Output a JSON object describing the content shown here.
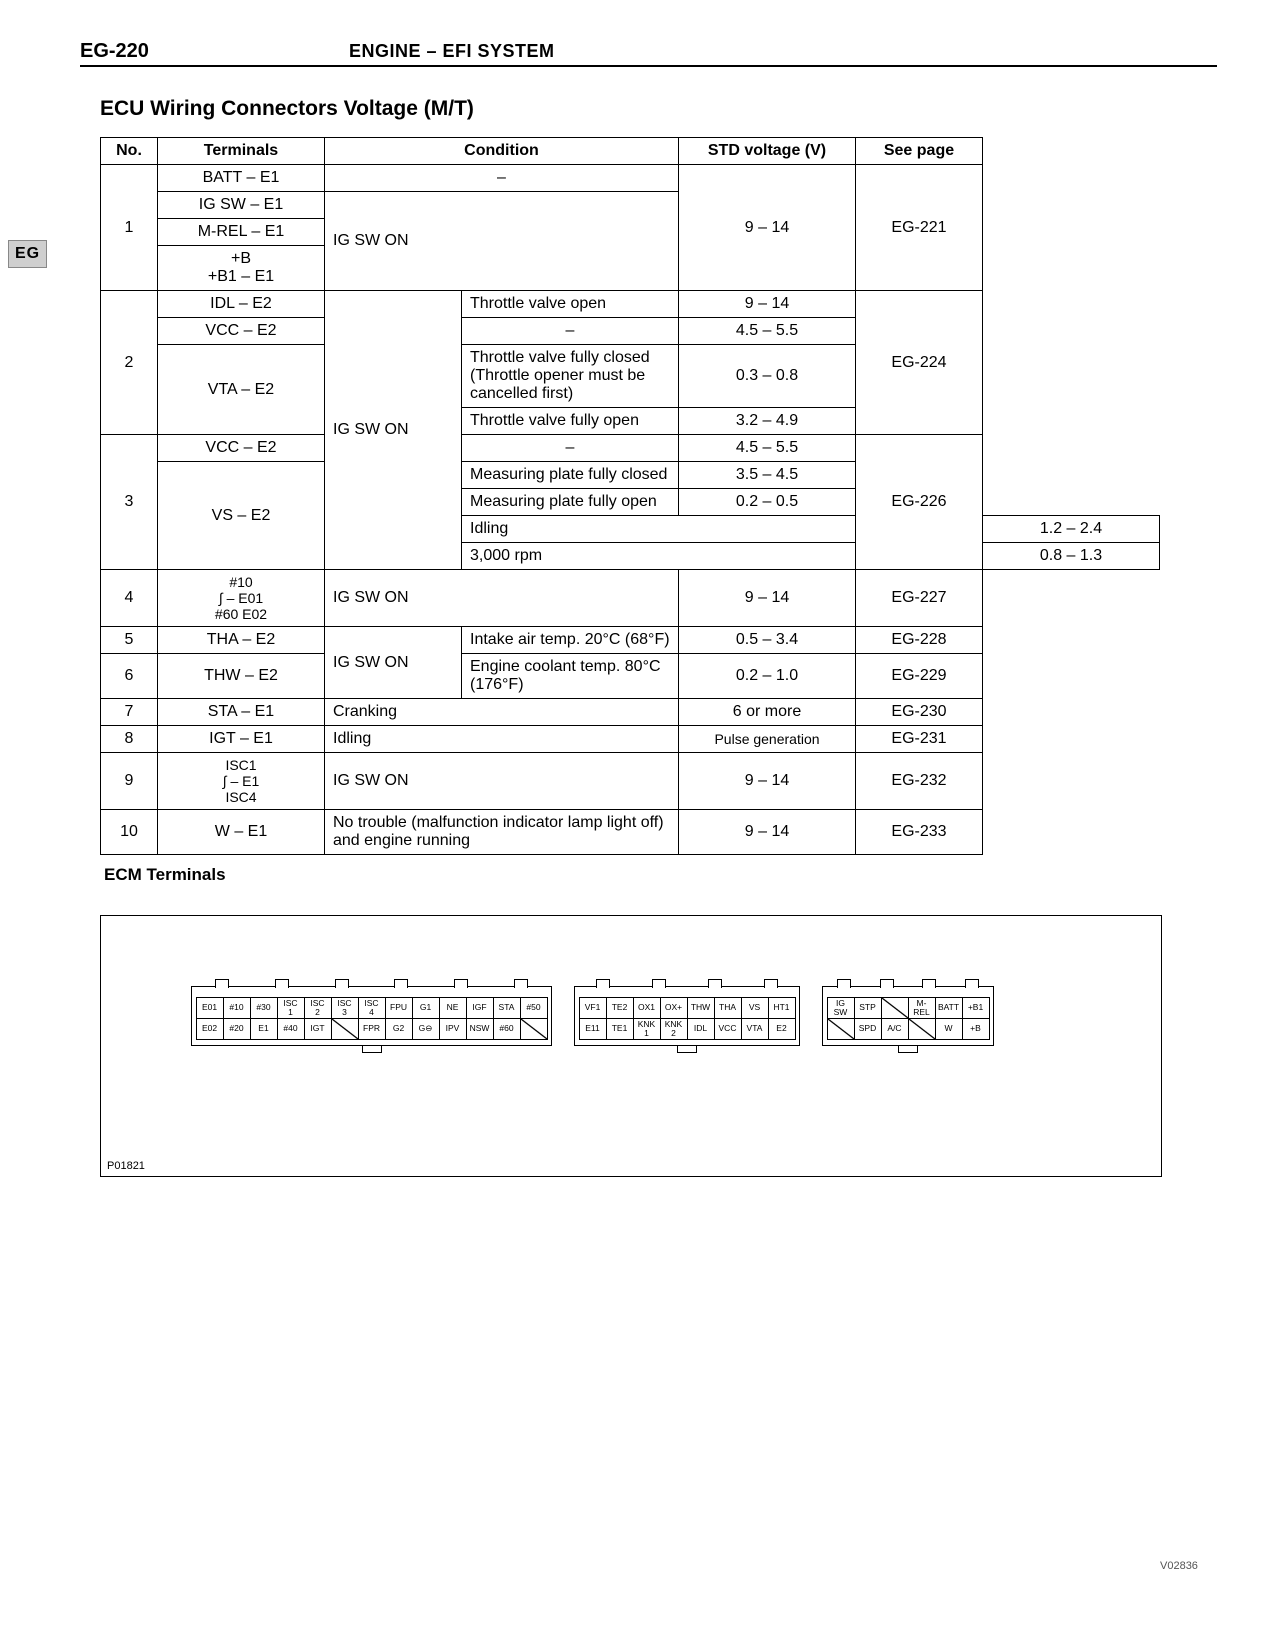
{
  "header": {
    "page_code": "EG-220",
    "title": "ENGINE – EFI SYSTEM"
  },
  "side_tab": "EG",
  "section_title": "ECU Wiring Connectors Voltage (M/T)",
  "table": {
    "columns": [
      "No.",
      "Terminals",
      "Condition",
      "STD voltage (V)",
      "See page"
    ],
    "rows": [
      {
        "no": "1",
        "terminals": [
          "BATT – E1",
          "IG SW – E1",
          "M-REL – E1",
          "+B\n+B1 – E1"
        ],
        "condition_top": "–",
        "condition_rest": "IG SW ON",
        "voltage": "9 – 14",
        "page": "EG-221"
      },
      {
        "no": "2",
        "sub": [
          {
            "term": "IDL – E2",
            "cond_b": "Throttle valve open",
            "volt": "9 – 14"
          },
          {
            "term": "VCC – E2",
            "cond_b": "–",
            "volt": "4.5 – 5.5"
          },
          {
            "term": "VTA – E2",
            "cond_b1": "Throttle valve fully closed\n(Throttle opener must be cancelled first)",
            "volt1": "0.3 – 0.8",
            "cond_b2": "Throttle valve fully open",
            "volt2": "3.2 – 4.9"
          }
        ],
        "cond_a": "IG SW ON",
        "page": "EG-224"
      },
      {
        "no": "3",
        "sub": [
          {
            "term": "VCC – E2",
            "cond_b": "–",
            "volt": "4.5 – 5.5"
          },
          {
            "term": "VS – E2",
            "lines": [
              {
                "cond_b": "Measuring plate fully closed",
                "volt": "3.5 – 4.5"
              },
              {
                "cond_b": "Measuring plate fully open",
                "volt": "0.2 – 0.5"
              },
              {
                "cond_a": "Idling",
                "volt": "1.2 – 2.4"
              },
              {
                "cond_a": "3,000 rpm",
                "volt": "0.8 – 1.3"
              }
            ]
          }
        ],
        "cond_a": "IG SW ON",
        "page": "EG-226"
      },
      {
        "no": "4",
        "term": "#10\n∫ – E01\n#60   E02",
        "cond": "IG SW ON",
        "volt": "9 – 14",
        "page": "EG-227"
      },
      {
        "no": "5",
        "term": "THA – E2",
        "cond_a": "IG SW ON",
        "cond_b": "Intake air temp. 20°C (68°F)",
        "volt": "0.5 – 3.4",
        "page": "EG-228"
      },
      {
        "no": "6",
        "term": "THW – E2",
        "cond_b": "Engine coolant temp. 80°C (176°F)",
        "volt": "0.2 – 1.0",
        "page": "EG-229"
      },
      {
        "no": "7",
        "term": "STA – E1",
        "cond": "Cranking",
        "volt": "6 or more",
        "page": "EG-230"
      },
      {
        "no": "8",
        "term": "IGT – E1",
        "cond": "Idling",
        "volt": "Pulse generation",
        "page": "EG-231"
      },
      {
        "no": "9",
        "term": "ISC1\n∫ – E1\nISC4",
        "cond": "IG SW ON",
        "volt": "9 – 14",
        "page": "EG-232"
      },
      {
        "no": "10",
        "term": "W – E1",
        "cond": "No trouble (malfunction indicator lamp light off) and engine running",
        "volt": "9 – 14",
        "page": "EG-233"
      }
    ]
  },
  "ecm": {
    "heading": "ECM Terminals",
    "diagram_id": "P01821",
    "connectors": [
      {
        "notches": 6,
        "top": [
          "E01",
          "#10",
          "#30",
          "ISC\n1",
          "ISC\n2",
          "ISC\n3",
          "ISC\n4",
          "FPU",
          "G1",
          "NE",
          "IGF",
          "STA",
          "#50"
        ],
        "bottom": [
          "E02",
          "#20",
          "E1",
          "#40",
          "IGT",
          "",
          "FPR",
          "G2",
          "G⊖",
          "IPV",
          "NSW",
          "#60",
          ""
        ]
      },
      {
        "notches": 4,
        "top": [
          "VF1",
          "TE2",
          "OX1",
          "OX+",
          "THW",
          "THA",
          "VS",
          "HT1"
        ],
        "bottom": [
          "E11",
          "TE1",
          "KNK\n1",
          "KNK\n2",
          "IDL",
          "VCC",
          "VTA",
          "E2"
        ]
      },
      {
        "notches": 4,
        "top": [
          "IG\nSW",
          "STP",
          "",
          "M-\nREL",
          "BATT",
          "+B1"
        ],
        "bottom": [
          "",
          "SPD",
          "A/C",
          "",
          "W",
          "+B"
        ]
      }
    ]
  },
  "footer_code": "V02836"
}
